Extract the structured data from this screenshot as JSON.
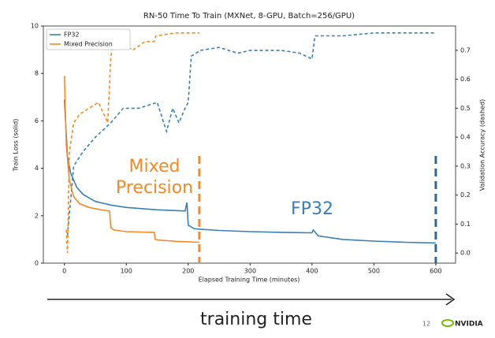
{
  "chart_data": {
    "type": "line",
    "title": "RN-50 Time To Train (MXNet, 8-GPU, Batch=256/GPU)",
    "x_label": "Elapsed Training Time (minutes)",
    "y_label": "Train Loss (solid)",
    "y2_label": "Validation Accuracy (dashed)",
    "xlim": [
      -34,
      632
    ],
    "xticks": [
      0,
      100,
      200,
      300,
      400,
      500,
      600
    ],
    "ylim": [
      0,
      10
    ],
    "yticks": [
      0,
      2,
      4,
      6,
      8,
      10
    ],
    "y2lim": [
      -0.035,
      0.784
    ],
    "y2ticks": [
      {
        "value": 0,
        "label": "0.0"
      },
      0.1,
      0.2,
      0.3,
      0.4,
      0.5,
      0.6,
      0.7
    ],
    "legend": "upper left",
    "series": [
      {
        "name": "FP32",
        "color": "#3a7fb5",
        "loss": {
          "x": [
            0,
            5,
            10,
            20,
            30,
            50,
            75,
            100,
            150,
            195,
            198,
            200,
            210,
            250,
            300,
            350,
            400,
            402,
            410,
            450,
            500,
            550,
            600
          ],
          "values": [
            6.9,
            4.5,
            3.8,
            3.2,
            2.9,
            2.6,
            2.45,
            2.35,
            2.25,
            2.2,
            2.55,
            1.6,
            1.45,
            1.38,
            1.33,
            1.3,
            1.28,
            1.4,
            1.15,
            1.0,
            0.93,
            0.88,
            0.85
          ]
        },
        "accuracy": {
          "x": [
            5,
            15,
            30,
            50,
            75,
            95,
            120,
            150,
            165,
            175,
            185,
            195,
            200,
            205,
            220,
            250,
            280,
            300,
            350,
            380,
            400,
            405,
            450,
            500,
            600
          ],
          "values": [
            0.06,
            0.3,
            0.35,
            0.4,
            0.45,
            0.5,
            0.5,
            0.52,
            0.42,
            0.5,
            0.45,
            0.5,
            0.52,
            0.68,
            0.7,
            0.71,
            0.69,
            0.7,
            0.7,
            0.69,
            0.67,
            0.75,
            0.75,
            0.76,
            0.76
          ]
        }
      },
      {
        "name": "Mixed Precision",
        "color": "#f28a26",
        "loss": {
          "x": [
            0,
            3,
            8,
            15,
            25,
            40,
            60,
            73,
            75,
            80,
            100,
            145,
            147,
            150,
            180,
            200,
            218
          ],
          "values": [
            7.9,
            5.0,
            3.5,
            2.8,
            2.5,
            2.35,
            2.25,
            2.2,
            1.5,
            1.4,
            1.33,
            1.3,
            1.0,
            0.98,
            0.92,
            0.9,
            0.88
          ]
        },
        "accuracy": {
          "x": [
            3,
            5,
            8,
            15,
            25,
            40,
            55,
            70,
            75,
            80,
            100,
            110,
            130,
            145,
            148,
            180,
            218
          ],
          "values": [
            0.08,
            0.0,
            0.35,
            0.45,
            0.48,
            0.5,
            0.52,
            0.45,
            0.68,
            0.72,
            0.72,
            0.7,
            0.73,
            0.73,
            0.75,
            0.76,
            0.76
          ]
        }
      }
    ],
    "markers": [
      {
        "x": 218,
        "color": "#f28a26"
      },
      {
        "x": 600,
        "color": "#2e6a96"
      }
    ],
    "annotations": [
      {
        "lines": [
          "Mixed",
          "Precision"
        ],
        "color": "#f28a26"
      },
      {
        "lines": [
          "FP32"
        ],
        "color": "#3a7fb5"
      }
    ]
  },
  "footer": {
    "arrow_label": "training time",
    "page_number": "12",
    "logo": "NVIDIA"
  }
}
